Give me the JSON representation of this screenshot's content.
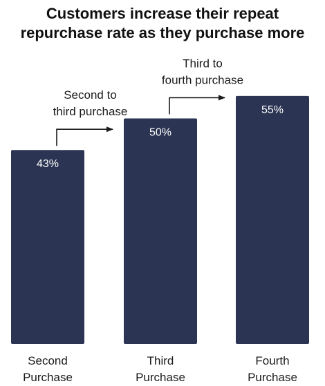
{
  "chart_data": {
    "type": "bar",
    "title_lines": [
      "Customers increase their repeat",
      "repurchase rate as they purchase more"
    ],
    "categories": [
      [
        "Second",
        "Purchase"
      ],
      [
        "Third",
        "Purchase"
      ],
      [
        "Fourth",
        "Purchase"
      ]
    ],
    "values": [
      43,
      50,
      55
    ],
    "value_labels": [
      "43%",
      "50%",
      "55%"
    ],
    "annotations": [
      {
        "lines": [
          "Second to",
          "third purchase"
        ],
        "from": 0,
        "to": 1
      },
      {
        "lines": [
          "Third to",
          "fourth purchase"
        ],
        "from": 1,
        "to": 2
      }
    ],
    "bar_color": "#2b3553",
    "ylim": [
      0,
      100
    ],
    "grid": false
  }
}
